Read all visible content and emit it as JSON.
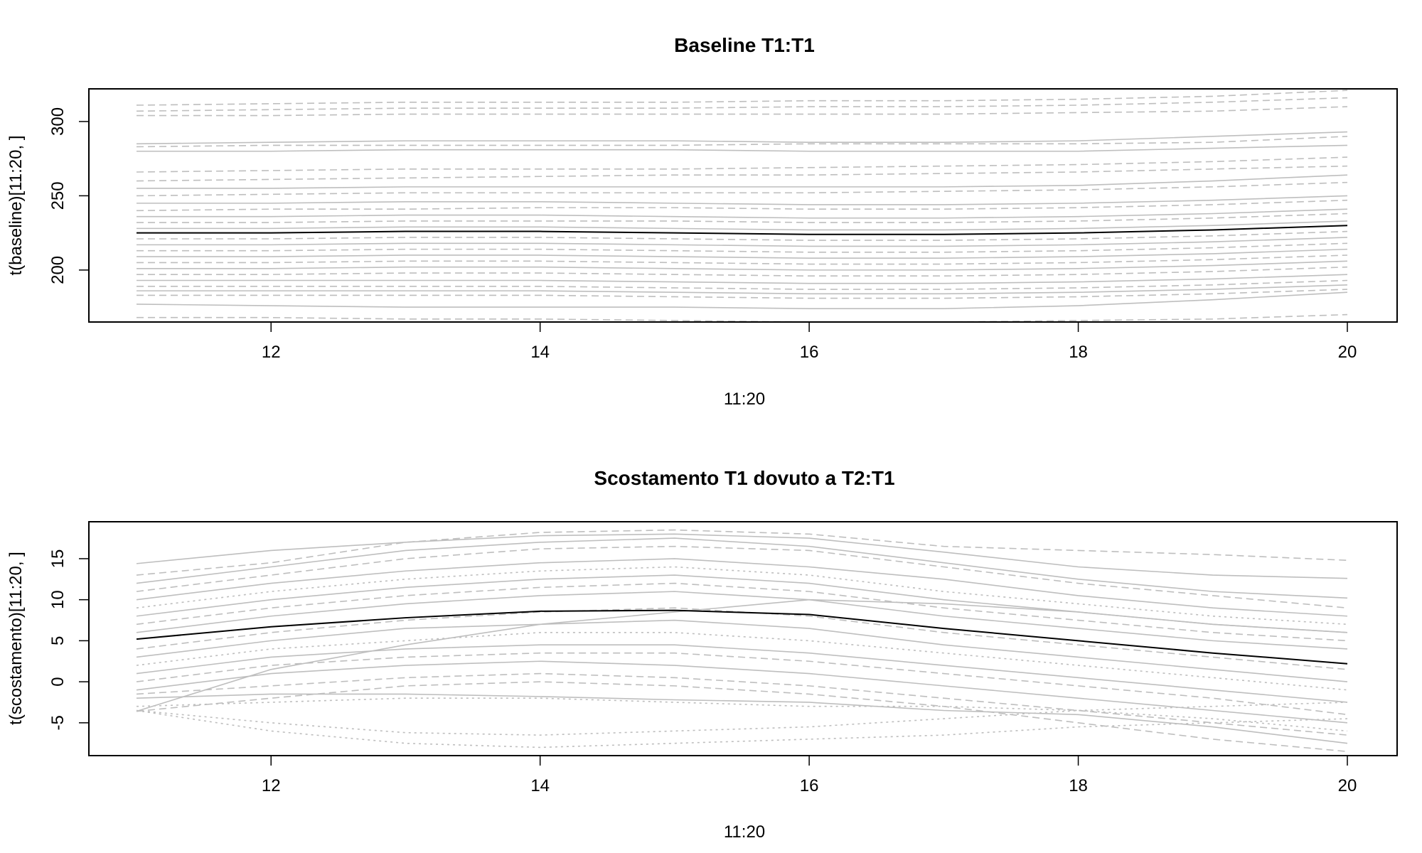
{
  "chart_data": [
    {
      "type": "line",
      "title": "Baseline T1:T1",
      "xlabel": "11:20",
      "ylabel": "t(baseline)[11:20, ]",
      "x": [
        11,
        12,
        13,
        14,
        15,
        16,
        17,
        18,
        19,
        20
      ],
      "xlim": [
        11,
        20
      ],
      "xticks": [
        12,
        14,
        16,
        18,
        20
      ],
      "ylim": [
        165,
        322
      ],
      "yticks": [
        200,
        250,
        300
      ],
      "grid": false,
      "legend": "none",
      "colors": {
        "background_series": "#bebebe",
        "mean_series": "#000000"
      },
      "series_count_note": "many individual gray trajectories",
      "series": [
        {
          "role": "mean",
          "style": "solid",
          "values": [
            225,
            225,
            226,
            226,
            225,
            224,
            224,
            225,
            227,
            230
          ]
        },
        {
          "style": "dashed",
          "values": [
            311,
            312,
            313,
            313,
            313,
            314,
            314,
            315,
            317,
            321
          ]
        },
        {
          "style": "dashed",
          "values": [
            307,
            308,
            309,
            309,
            309,
            310,
            310,
            311,
            313,
            316
          ]
        },
        {
          "style": "dashed",
          "values": [
            304,
            304,
            305,
            305,
            305,
            305,
            305,
            306,
            307,
            310
          ]
        },
        {
          "style": "solid",
          "values": [
            285,
            286,
            287,
            287,
            287,
            286,
            286,
            287,
            290,
            293
          ]
        },
        {
          "style": "dashed",
          "values": [
            283,
            284,
            284,
            284,
            284,
            285,
            285,
            285,
            286,
            290
          ]
        },
        {
          "style": "solid",
          "values": [
            280,
            280,
            281,
            281,
            281,
            280,
            280,
            280,
            282,
            284
          ]
        },
        {
          "style": "dashed",
          "values": [
            266,
            267,
            268,
            268,
            268,
            269,
            270,
            271,
            273,
            276
          ]
        },
        {
          "style": "dashed",
          "values": [
            260,
            261,
            262,
            263,
            264,
            264,
            265,
            266,
            268,
            270
          ]
        },
        {
          "style": "solid",
          "values": [
            255,
            255,
            256,
            256,
            256,
            256,
            256,
            257,
            260,
            264
          ]
        },
        {
          "style": "dashed",
          "values": [
            250,
            251,
            252,
            252,
            252,
            252,
            253,
            254,
            256,
            259
          ]
        },
        {
          "style": "solid",
          "values": [
            245,
            245,
            246,
            246,
            245,
            244,
            244,
            245,
            247,
            250
          ]
        },
        {
          "style": "dashed",
          "values": [
            240,
            241,
            241,
            242,
            242,
            241,
            241,
            242,
            244,
            247
          ]
        },
        {
          "style": "solid",
          "values": [
            236,
            236,
            237,
            237,
            236,
            235,
            235,
            236,
            238,
            241
          ]
        },
        {
          "style": "dashed",
          "values": [
            232,
            232,
            233,
            233,
            233,
            232,
            232,
            233,
            235,
            238
          ]
        },
        {
          "style": "solid",
          "values": [
            228,
            228,
            229,
            229,
            228,
            227,
            227,
            228,
            230,
            233
          ]
        },
        {
          "style": "dashed",
          "values": [
            221,
            221,
            222,
            222,
            221,
            220,
            220,
            221,
            223,
            226
          ]
        },
        {
          "style": "solid",
          "values": [
            217,
            217,
            218,
            218,
            217,
            216,
            216,
            217,
            219,
            222
          ]
        },
        {
          "style": "dashed",
          "values": [
            213,
            213,
            214,
            214,
            213,
            212,
            212,
            213,
            215,
            218
          ]
        },
        {
          "style": "solid",
          "values": [
            209,
            209,
            210,
            210,
            209,
            208,
            208,
            209,
            211,
            214
          ]
        },
        {
          "style": "dashed",
          "values": [
            205,
            205,
            206,
            206,
            205,
            204,
            204,
            205,
            207,
            210
          ]
        },
        {
          "style": "solid",
          "values": [
            201,
            201,
            202,
            202,
            201,
            200,
            200,
            201,
            203,
            206
          ]
        },
        {
          "style": "dashed",
          "values": [
            197,
            197,
            198,
            198,
            197,
            196,
            196,
            197,
            199,
            202
          ]
        },
        {
          "style": "solid",
          "values": [
            193,
            193,
            193,
            193,
            192,
            191,
            191,
            192,
            194,
            197
          ]
        },
        {
          "style": "dashed",
          "values": [
            189,
            189,
            189,
            189,
            188,
            187,
            187,
            188,
            190,
            193
          ]
        },
        {
          "style": "solid",
          "values": [
            186,
            186,
            186,
            186,
            185,
            184,
            184,
            185,
            187,
            190
          ]
        },
        {
          "style": "dashed",
          "values": [
            183,
            183,
            183,
            183,
            182,
            181,
            181,
            182,
            184,
            187
          ]
        },
        {
          "style": "solid",
          "values": [
            177,
            176,
            175,
            175,
            175,
            174,
            174,
            176,
            180,
            185
          ]
        },
        {
          "style": "dashed",
          "values": [
            168,
            168,
            167,
            167,
            166,
            165,
            165,
            166,
            167,
            170
          ]
        }
      ]
    },
    {
      "type": "line",
      "title": "Scostamento T1 dovuto a T2:T1",
      "xlabel": "11:20",
      "ylabel": "t(scostamento)[11:20, ]",
      "x": [
        11,
        12,
        13,
        14,
        15,
        16,
        17,
        18,
        19,
        20
      ],
      "xlim": [
        11,
        20
      ],
      "xticks": [
        12,
        14,
        16,
        18,
        20
      ],
      "ylim": [
        -9,
        19.5
      ],
      "yticks": [
        -5,
        0,
        5,
        10,
        15
      ],
      "grid": false,
      "legend": "none",
      "colors": {
        "background_series": "#bebebe",
        "mean_series": "#000000"
      },
      "series_count_note": "many individual gray trajectories",
      "series": [
        {
          "role": "mean",
          "style": "solid",
          "values": [
            5.2,
            6.7,
            7.8,
            8.6,
            8.7,
            8.2,
            6.5,
            5.0,
            3.5,
            2.2
          ]
        },
        {
          "style": "solid",
          "values": [
            14.4,
            16.0,
            17.0,
            17.8,
            18.0,
            17.5,
            15.8,
            14.0,
            13.0,
            12.6
          ]
        },
        {
          "style": "dashed",
          "values": [
            13.0,
            14.5,
            17.0,
            18.2,
            18.5,
            18.0,
            16.5,
            16.0,
            15.5,
            14.8
          ]
        },
        {
          "style": "solid",
          "values": [
            12.0,
            14.0,
            16.0,
            17.0,
            17.5,
            16.5,
            14.5,
            12.5,
            11.0,
            10.2
          ]
        },
        {
          "style": "dashed",
          "values": [
            11.0,
            13.0,
            15.0,
            16.2,
            16.5,
            16.0,
            14.0,
            12.0,
            10.5,
            9.0
          ]
        },
        {
          "style": "solid",
          "values": [
            10.0,
            12.0,
            13.5,
            14.5,
            15.0,
            14.0,
            12.5,
            10.5,
            9.0,
            8.0
          ]
        },
        {
          "style": "dotted",
          "values": [
            9.0,
            11.0,
            12.5,
            13.5,
            14.0,
            13.0,
            11.0,
            9.5,
            8.0,
            7.0
          ]
        },
        {
          "style": "solid",
          "values": [
            8.0,
            10.0,
            11.5,
            12.5,
            13.0,
            12.0,
            10.0,
            8.5,
            7.0,
            6.0
          ]
        },
        {
          "style": "dashed",
          "values": [
            7.0,
            9.0,
            10.5,
            11.5,
            12.0,
            11.0,
            9.0,
            7.5,
            6.0,
            5.0
          ]
        },
        {
          "style": "solid",
          "values": [
            6.0,
            8.0,
            9.5,
            10.5,
            11.0,
            10.0,
            8.0,
            6.5,
            5.0,
            4.0
          ]
        },
        {
          "style": "dashed",
          "values": [
            4.0,
            6.0,
            7.5,
            8.5,
            9.0,
            8.0,
            6.0,
            4.5,
            3.0,
            1.5
          ]
        },
        {
          "style": "solid",
          "values": [
            3.0,
            5.0,
            6.5,
            7.0,
            7.5,
            6.5,
            4.5,
            3.0,
            1.5,
            0.0
          ]
        },
        {
          "style": "dotted",
          "values": [
            2.0,
            4.0,
            5.0,
            6.0,
            6.0,
            5.0,
            3.5,
            2.0,
            0.5,
            -1.0
          ]
        },
        {
          "style": "solid",
          "values": [
            1.0,
            3.0,
            4.0,
            4.5,
            4.5,
            3.5,
            2.0,
            0.5,
            -1.0,
            -2.5
          ]
        },
        {
          "style": "dashed",
          "values": [
            0.0,
            2.0,
            3.0,
            3.5,
            3.5,
            2.5,
            1.0,
            -0.5,
            -2.0,
            -4.0
          ]
        },
        {
          "style": "solid",
          "values": [
            -1.0,
            1.0,
            2.0,
            2.5,
            2.0,
            1.0,
            -0.5,
            -2.0,
            -3.5,
            -5.0
          ]
        },
        {
          "style": "dashed",
          "values": [
            -1.5,
            -0.5,
            0.5,
            1.0,
            0.5,
            -0.5,
            -2.0,
            -3.5,
            -5.0,
            -6.5
          ]
        },
        {
          "style": "solid",
          "values": [
            -2.0,
            -1.5,
            -1.5,
            -1.8,
            -2.2,
            -2.5,
            -3.5,
            -4.0,
            -5.5,
            -7.5
          ]
        },
        {
          "style": "dotted",
          "values": [
            -3.0,
            -2.5,
            -2.0,
            -2.0,
            -2.5,
            -3.0,
            -3.0,
            -3.5,
            -4.5,
            -6.0
          ]
        },
        {
          "style": "dotted",
          "values": [
            -3.5,
            -5.0,
            -6.2,
            -6.5,
            -6.0,
            -5.5,
            -4.5,
            -3.5,
            -3.0,
            -2.5
          ]
        },
        {
          "style": "dotted",
          "values": [
            -3.5,
            -6.0,
            -7.5,
            -8.0,
            -7.5,
            -7.0,
            -6.5,
            -5.5,
            -5.0,
            -4.5
          ]
        },
        {
          "style": "dashed",
          "values": [
            -3.6,
            -2.0,
            -0.5,
            0.0,
            -0.5,
            -1.5,
            -3.0,
            -5.0,
            -7.0,
            -8.5
          ]
        },
        {
          "style": "solid",
          "values": [
            -3.6,
            1.5,
            4.5,
            7.0,
            8.5,
            10.0,
            9.5,
            8.5,
            7.0,
            6.0
          ]
        }
      ]
    }
  ]
}
